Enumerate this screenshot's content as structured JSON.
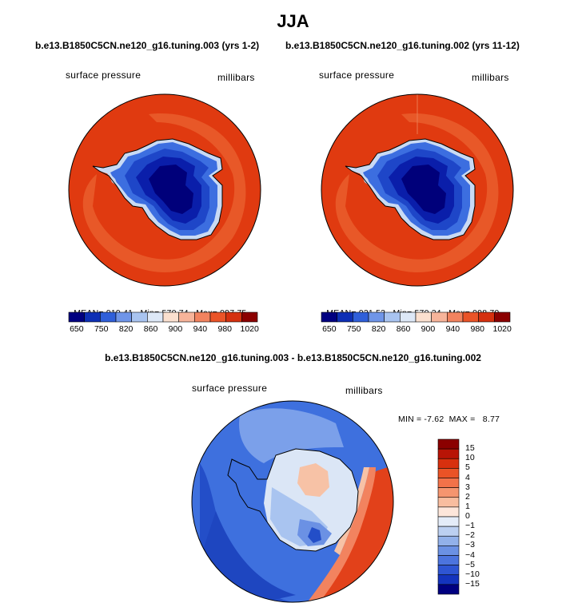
{
  "title": "JJA",
  "panels": [
    {
      "run_title": "b.e13.B1850C5CN.ne120_g16.tuning.003 (yrs 1-2)",
      "variable": "surface pressure",
      "units": "millibars",
      "stats": {
        "mean_label": "MEAN=",
        "mean": "919.41",
        "min_label": "Min=",
        "min": "570.74",
        "max_label": "Max=",
        "max": "997.75"
      }
    },
    {
      "run_title": "b.e13.B1850C5CN.ne120_g16.tuning.002 (yrs 11-12)",
      "variable": "surface pressure",
      "units": "millibars",
      "stats": {
        "mean_label": "MEAN=",
        "mean": "921.53",
        "min_label": "Min=",
        "min": "570.24",
        "max_label": "Max=",
        "max": "998.70"
      }
    }
  ],
  "colorbar": {
    "labels": [
      "650",
      "750",
      "820",
      "860",
      "900",
      "940",
      "980",
      "1020"
    ],
    "colors": [
      "#000080",
      "#0d2fb5",
      "#2f5fd9",
      "#6f95e8",
      "#a9c4f0",
      "#dde8f7",
      "#fbe0cf",
      "#f7b49a",
      "#f2835f",
      "#ea5428",
      "#d5300f",
      "#8b0000"
    ]
  },
  "difference": {
    "title": "b.e13.B1850C5CN.ne120_g16.tuning.003 - b.e13.B1850C5CN.ne120_g16.tuning.002",
    "variable": "surface pressure",
    "units": "millibars",
    "stats": {
      "min_label": "MIN =",
      "min": "-7.62",
      "max_label": "MAX =",
      "max": "8.77"
    },
    "colorbar": {
      "labels": [
        "15",
        "10",
        "5",
        "4",
        "3",
        "2",
        "1",
        "0",
        "−1",
        "−2",
        "−3",
        "−4",
        "−5",
        "−10",
        "−15"
      ],
      "colors": [
        "#8b0000",
        "#b81406",
        "#d8300e",
        "#ea5326",
        "#f27249",
        "#f5956f",
        "#f8bd9f",
        "#fde6da",
        "#e4ecf8",
        "#bcd0f1",
        "#92b1ea",
        "#6b91e4",
        "#4c74de",
        "#2e55d3",
        "#1434be",
        "#000080"
      ]
    }
  },
  "map_colors": {
    "ocean": "#e03a10",
    "ocean_ring": "#e85828",
    "plateau_deep": "#00007a",
    "plateau": "#0a1eaa",
    "slope1": "#1e46c8",
    "slope2": "#3c6ee0",
    "coast_light": "#c9daf4",
    "diff_base": "#3e70de",
    "diff_dark": "#234ec8",
    "diff_light": "#7ba0ea",
    "diff_pale": "#dbe6f6",
    "diff_pos": "#f7c2a6",
    "diff_red": "#e2411a"
  }
}
